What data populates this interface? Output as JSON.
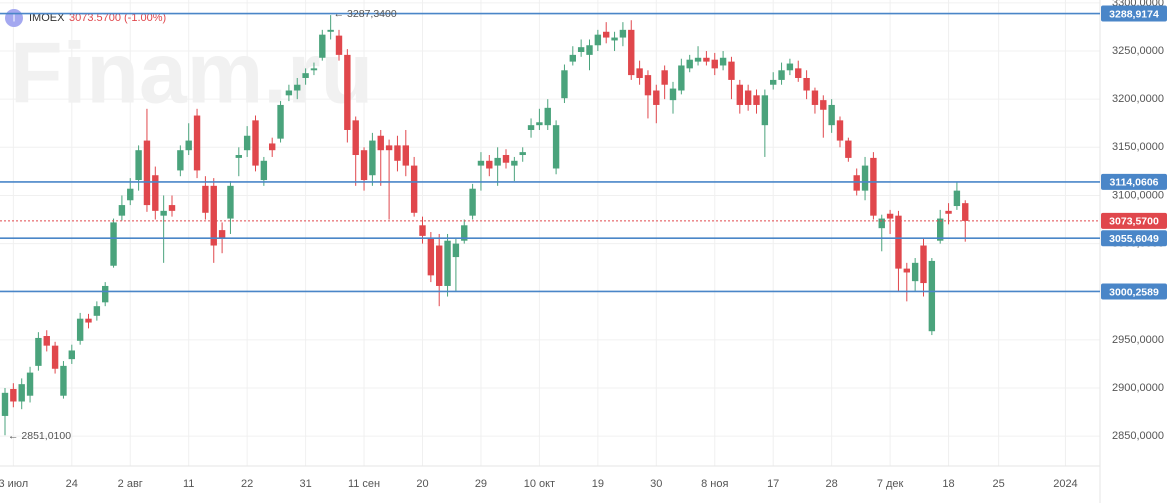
{
  "header": {
    "icon": "I",
    "symbol": "IMOEX",
    "price": "3073.5700",
    "change": "(-1.00%)"
  },
  "watermark": "Finam.ru",
  "chart_data": {
    "type": "candlestick",
    "categories": [
      null,
      "3 июл",
      null,
      null,
      null,
      null,
      null,
      null,
      "24",
      null,
      null,
      null,
      null,
      null,
      null,
      "2 авг",
      null,
      null,
      null,
      null,
      null,
      null,
      "11",
      null,
      null,
      null,
      null,
      null,
      null,
      "22",
      null,
      null,
      null,
      null,
      null,
      null,
      "31",
      null,
      null,
      null,
      null,
      null,
      null,
      "11 сен",
      null,
      null,
      null,
      null,
      null,
      null,
      "20",
      null,
      null,
      null,
      null,
      null,
      null,
      "29",
      null,
      null,
      null,
      null,
      null,
      null,
      "10 окт",
      null,
      null,
      null,
      null,
      null,
      null,
      "19",
      null,
      null,
      null,
      null,
      null,
      null,
      "30",
      null,
      null,
      null,
      null,
      null,
      null,
      "8 ноя",
      null,
      null,
      null,
      null,
      null,
      null,
      "17",
      null,
      null,
      null,
      null,
      null,
      null,
      "28",
      null,
      null,
      null,
      null,
      null,
      null,
      "7 дек",
      null,
      null,
      null,
      null,
      null,
      null,
      "18",
      null,
      null,
      null,
      null,
      null,
      "25",
      null,
      null,
      null,
      null,
      null,
      null,
      null,
      "2024"
    ],
    "open": [
      2871,
      2899,
      2886,
      2892,
      2923,
      2954,
      2944,
      2892,
      2930,
      2949,
      2972,
      2975,
      2989,
      3027,
      3079,
      3095,
      3116,
      3157,
      3121,
      3079,
      3090,
      3126,
      3147,
      3183,
      3110,
      3110,
      3064,
      3076,
      3139,
      3147,
      3178,
      3116,
      3154,
      3159,
      3204,
      3209,
      3222,
      3230,
      3243,
      3270,
      3266,
      3246,
      3178,
      3147,
      3121,
      3162,
      3152,
      3152,
      3152,
      3131,
      3069,
      3055,
      3048,
      3006,
      3036,
      3053,
      3079,
      3131,
      3136,
      3131,
      3142,
      3131,
      3142,
      3168,
      3173,
      3173,
      3128,
      3201,
      3239,
      3249,
      3246,
      3256,
      3270,
      3261,
      3264,
      3272,
      3232,
      3225,
      3209,
      3230,
      3199,
      3209,
      3232,
      3239,
      3243,
      3241,
      3235,
      3239,
      3215,
      3209,
      3204,
      3173,
      3215,
      3220,
      3230,
      3232,
      3222,
      3209,
      3199,
      3173,
      3178,
      3157,
      3121,
      3105,
      3139,
      3066,
      3081,
      3079,
      3024,
      3011,
      3048,
      2959,
      3053,
      3084,
      3089,
      3092,
      null,
      null,
      null,
      null,
      null,
      null,
      null,
      null,
      null,
      null,
      null,
      null
    ],
    "high": [
      2900,
      2905,
      2910,
      2922,
      2958,
      2960,
      2948,
      2928,
      2945,
      2978,
      2977,
      2990,
      3010,
      3076,
      3100,
      3118,
      3152,
      3190,
      3130,
      3100,
      3100,
      3152,
      3175,
      3190,
      3120,
      3118,
      3072,
      3115,
      3150,
      3172,
      3183,
      3140,
      3160,
      3198,
      3215,
      3222,
      3232,
      3238,
      3272,
      3287.34,
      3272,
      3252,
      3182,
      3150,
      3165,
      3168,
      3158,
      3162,
      3168,
      3140,
      3078,
      3062,
      3060,
      3060,
      3055,
      3075,
      3112,
      3145,
      3142,
      3150,
      3148,
      3140,
      3150,
      3180,
      3190,
      3200,
      3178,
      3236,
      3255,
      3262,
      3262,
      3272,
      3280,
      3270,
      3280,
      3282,
      3240,
      3230,
      3215,
      3235,
      3218,
      3242,
      3246,
      3255,
      3250,
      3248,
      3250,
      3244,
      3220,
      3215,
      3210,
      3210,
      3228,
      3238,
      3242,
      3240,
      3230,
      3212,
      3204,
      3200,
      3182,
      3160,
      3128,
      3140,
      3145,
      3080,
      3085,
      3084,
      3030,
      3035,
      3055,
      3035,
      3085,
      3092,
      3114,
      3095,
      null,
      null,
      null,
      null,
      null,
      null,
      null,
      null,
      null,
      null,
      null,
      null
    ],
    "low": [
      2851,
      2880,
      2878,
      2885,
      2918,
      2938,
      2915,
      2889,
      2925,
      2945,
      2962,
      2970,
      2985,
      3025,
      3074,
      3090,
      3105,
      3083,
      3075,
      3030,
      3078,
      3120,
      3142,
      3118,
      3075,
      3030,
      3040,
      3060,
      3120,
      3140,
      3125,
      3110,
      3140,
      3155,
      3198,
      3200,
      3215,
      3225,
      3240,
      3262,
      3240,
      3155,
      3110,
      3105,
      3110,
      3110,
      3075,
      3125,
      3120,
      3078,
      3050,
      3010,
      2985,
      2995,
      3000,
      3050,
      3075,
      3105,
      3120,
      3110,
      3128,
      3115,
      3135,
      3160,
      3168,
      3168,
      3122,
      3196,
      3235,
      3244,
      3230,
      3250,
      3258,
      3250,
      3255,
      3220,
      3215,
      3180,
      3175,
      3200,
      3185,
      3205,
      3228,
      3235,
      3235,
      3225,
      3230,
      3200,
      3185,
      3188,
      3185,
      3140,
      3210,
      3215,
      3225,
      3218,
      3200,
      3185,
      3160,
      3165,
      3150,
      3135,
      3100,
      3095,
      3075,
      3042,
      3060,
      3000,
      2990,
      3000,
      2995,
      2955,
      3050,
      3070,
      3085,
      3052,
      null,
      null,
      null,
      null,
      null,
      null,
      null,
      null,
      null,
      null,
      null,
      null
    ],
    "close": [
      2895,
      2886,
      2904,
      2916,
      2952,
      2944,
      2920,
      2923,
      2939,
      2972,
      2968,
      2985,
      3006,
      3072,
      3090,
      3107,
      3147,
      3090,
      3084,
      3084,
      3084,
      3147,
      3157,
      3126,
      3082,
      3048,
      3055,
      3110,
      3142,
      3162,
      3131,
      3136,
      3147,
      3194,
      3209,
      3215,
      3227,
      3232,
      3267,
      3272,
      3246,
      3168,
      3142,
      3116,
      3157,
      3147,
      3147,
      3136,
      3131,
      3082,
      3058,
      3017,
      3006,
      3053,
      3050,
      3069,
      3107,
      3136,
      3128,
      3139,
      3134,
      3136,
      3145,
      3173,
      3176,
      3191,
      3173,
      3230,
      3246,
      3254,
      3256,
      3267,
      3264,
      3264,
      3272,
      3225,
      3222,
      3204,
      3194,
      3215,
      3211,
      3235,
      3241,
      3243,
      3239,
      3232,
      3243,
      3220,
      3194,
      3194,
      3194,
      3204,
      3220,
      3230,
      3237,
      3222,
      3209,
      3194,
      3189,
      3194,
      3157,
      3139,
      3105,
      3131,
      3079,
      3076,
      3076,
      3024,
      3020,
      3030,
      3009,
      3032,
      3076,
      3081,
      3105,
      3073.57,
      null,
      null,
      null,
      null,
      null,
      null,
      null,
      null,
      null,
      null,
      null,
      null
    ],
    "up_color": "#4aa37c",
    "down_color": "#e0474c",
    "ylim": [
      2819,
      3303
    ],
    "yticks": [
      {
        "value": 2850,
        "label": "2850,0000"
      },
      {
        "value": 2900,
        "label": "2900,0000"
      },
      {
        "value": 2950,
        "label": "2950,0000"
      },
      {
        "value": 3000,
        "label": "3000,0000"
      },
      {
        "value": 3050,
        "label": "3050,0000"
      },
      {
        "value": 3100,
        "label": "3100,0000"
      },
      {
        "value": 3150,
        "label": "3150,0000"
      },
      {
        "value": 3200,
        "label": "3200,0000"
      },
      {
        "value": 3250,
        "label": "3250,0000"
      },
      {
        "value": 3300,
        "label": "3300,0000"
      }
    ],
    "grid": true,
    "price_lines": [
      {
        "value": 3288.9174,
        "label": "3288,9174",
        "color": "#4a86c8"
      },
      {
        "value": 3114.0606,
        "label": "3114,0606",
        "color": "#4a86c8"
      },
      {
        "value": 3055.6049,
        "label": "3055,6049",
        "color": "#4a86c8"
      },
      {
        "value": 3000.2589,
        "label": "3000,2589",
        "color": "#4a86c8"
      },
      {
        "value": 3073.57,
        "label": "3073,5700",
        "color": "#e0474c",
        "style": "dotted"
      }
    ],
    "annotations": [
      {
        "text": "← 3287,3400",
        "index": 39,
        "at": "high"
      },
      {
        "text": "← 2851,0100",
        "index": 0,
        "at": "low"
      }
    ]
  }
}
